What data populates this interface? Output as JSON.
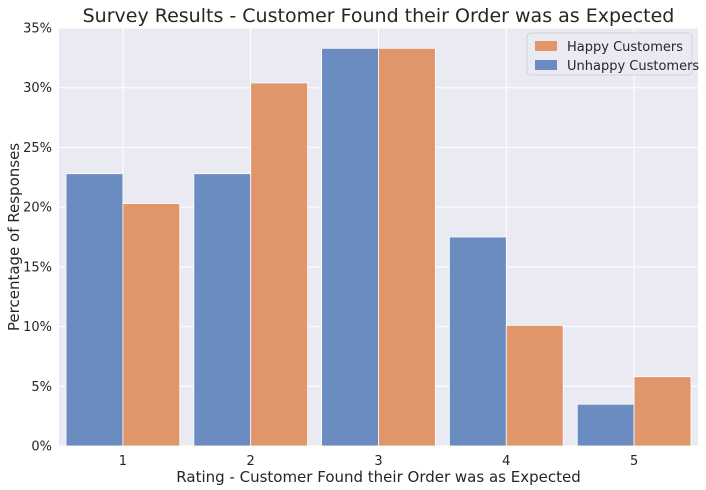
{
  "chart_data": {
    "type": "bar",
    "title": "Survey Results - Customer Found their Order was as Expected",
    "xlabel": "Rating - Customer Found their Order was as Expected",
    "ylabel": "Percentage of Responses",
    "categories": [
      "1",
      "2",
      "3",
      "4",
      "5"
    ],
    "ylim": [
      0,
      35
    ],
    "yticks": [
      "0%",
      "5%",
      "10%",
      "15%",
      "20%",
      "25%",
      "30%",
      "35%"
    ],
    "grid": true,
    "legend_position": "top-right",
    "series": [
      {
        "name": "Unhappy Customers",
        "color": "#6b8cc1",
        "values": [
          22.8,
          22.8,
          33.3,
          17.5,
          3.5
        ]
      },
      {
        "name": "Happy Customers",
        "color": "#e0956b",
        "values": [
          20.3,
          30.4,
          33.3,
          10.1,
          5.8
        ]
      }
    ],
    "legend_order": [
      "Happy Customers",
      "Unhappy Customers"
    ],
    "background_color": "#eaeaf2",
    "grid_color": "#ffffff"
  }
}
